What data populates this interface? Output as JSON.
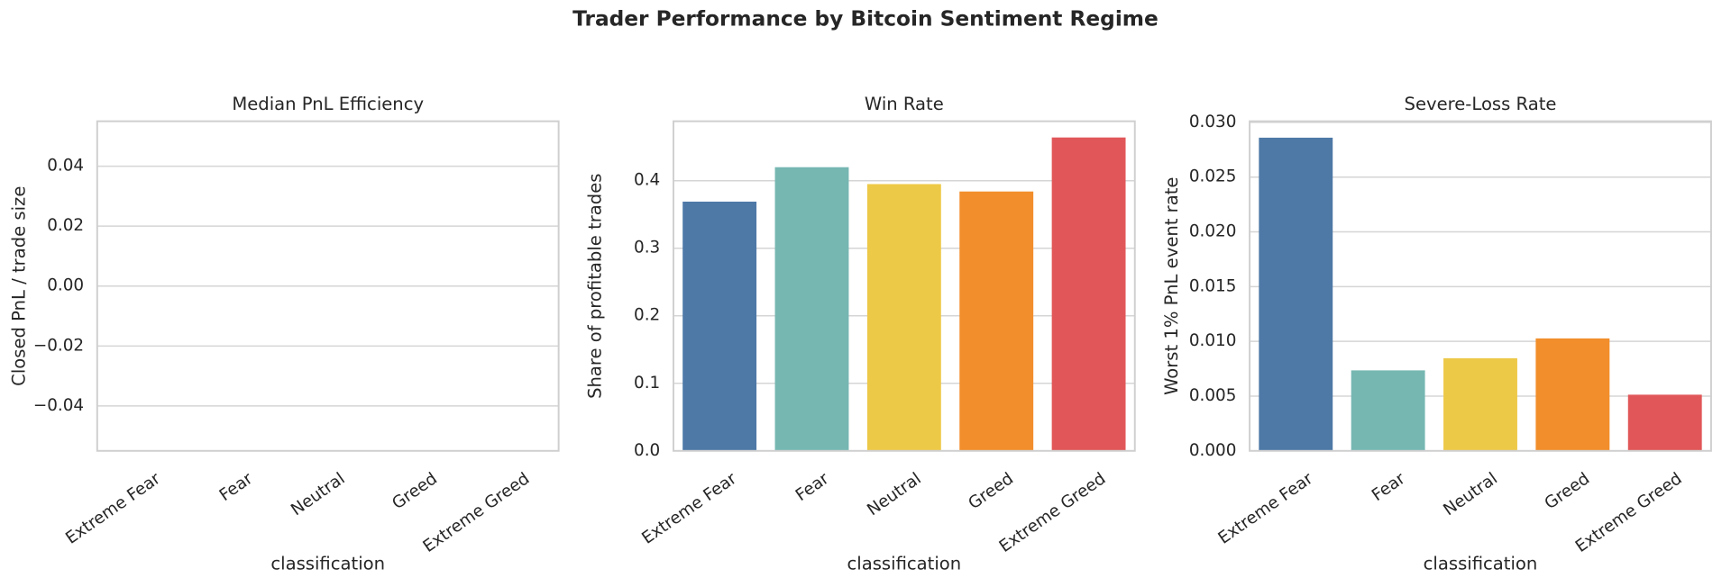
{
  "title": "Trader Performance by Bitcoin Sentiment Regime",
  "chart_data": [
    {
      "type": "bar",
      "title": "Median PnL Efficiency",
      "xlabel": "classification",
      "ylabel": "Closed PnL / trade size",
      "categories": [
        "Extreme Fear",
        "Fear",
        "Neutral",
        "Greed",
        "Extreme Greed"
      ],
      "values": [
        0,
        0,
        0,
        0,
        0
      ],
      "colors": [
        "#4e79a7",
        "#76b7b2",
        "#edc948",
        "#f28e2b",
        "#e15759"
      ],
      "ylim": [
        -0.055,
        0.055
      ],
      "yticks": [
        {
          "value": -0.04,
          "label": "−0.04"
        },
        {
          "value": -0.02,
          "label": "−0.02"
        },
        {
          "value": 0,
          "label": "0.00"
        },
        0.02,
        0.04
      ],
      "grid": true
    },
    {
      "type": "bar",
      "title": "Win Rate",
      "xlabel": "classification",
      "ylabel": "Share of profitable trades",
      "categories": [
        "Extreme Fear",
        "Fear",
        "Neutral",
        "Greed",
        "Extreme Greed"
      ],
      "values": [
        0.369,
        0.42,
        0.395,
        0.384,
        0.464
      ],
      "colors": [
        "#4e79a7",
        "#76b7b2",
        "#edc948",
        "#f28e2b",
        "#e15759"
      ],
      "ylim": [
        0,
        0.488
      ],
      "yticks": [
        {
          "value": 0,
          "label": "0.0"
        },
        0.1,
        0.2,
        0.3,
        0.4
      ],
      "grid": true
    },
    {
      "type": "bar",
      "title": "Severe-Loss Rate",
      "xlabel": "classification",
      "ylabel": "Worst 1% PnL event rate",
      "categories": [
        "Extreme Fear",
        "Fear",
        "Neutral",
        "Greed",
        "Extreme Greed"
      ],
      "values": [
        0.0286,
        0.00735,
        0.00846,
        0.01027,
        0.00513
      ],
      "colors": [
        "#4e79a7",
        "#76b7b2",
        "#edc948",
        "#f28e2b",
        "#e15759"
      ],
      "ylim": [
        0,
        0.0301
      ],
      "yticks": [
        {
          "value": 0,
          "label": "0.000"
        },
        0.005,
        {
          "value": 0.01,
          "label": "0.010"
        },
        0.015,
        {
          "value": 0.02,
          "label": "0.020"
        },
        0.025,
        {
          "value": 0.03,
          "label": "0.030"
        }
      ],
      "grid": true
    }
  ]
}
